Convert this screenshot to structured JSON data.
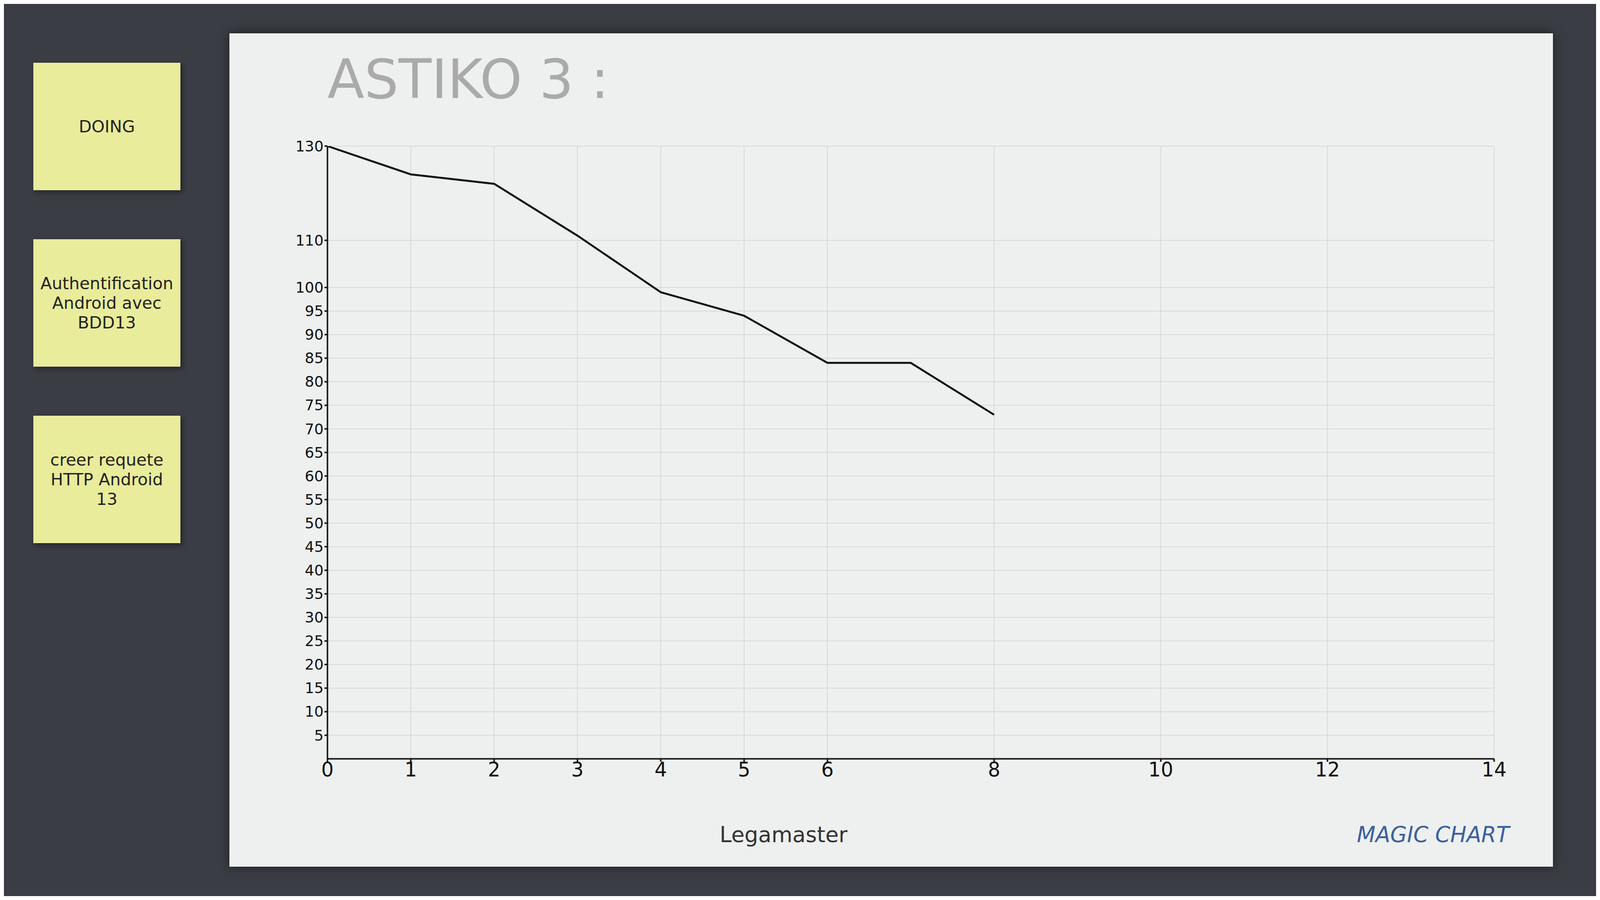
{
  "chart_data": {
    "type": "line",
    "title": "ASTIKO 3 :",
    "x": [
      0,
      1,
      2,
      3,
      4,
      5,
      6,
      7,
      8
    ],
    "series": [
      {
        "name": "ASTIKO 3",
        "color": "#111111",
        "values": [
          130,
          124,
          122,
          111,
          99,
          94,
          84,
          84,
          73
        ]
      }
    ],
    "xlim": [
      0,
      14
    ],
    "xticks": [
      0,
      1,
      2,
      3,
      4,
      5,
      6,
      8,
      10,
      12,
      14
    ],
    "ylim": [
      0,
      130
    ],
    "yticks": [
      5,
      10,
      15,
      20,
      25,
      30,
      35,
      40,
      45,
      50,
      55,
      60,
      65,
      70,
      75,
      80,
      85,
      90,
      95,
      100,
      110,
      130
    ],
    "grid": true,
    "marker": "none",
    "annotations": [
      "DOING",
      "Authentification Android avec BDD13",
      "creer requete HTTP Android 13",
      "Legamaster",
      "MAGIC CHART"
    ]
  }
}
